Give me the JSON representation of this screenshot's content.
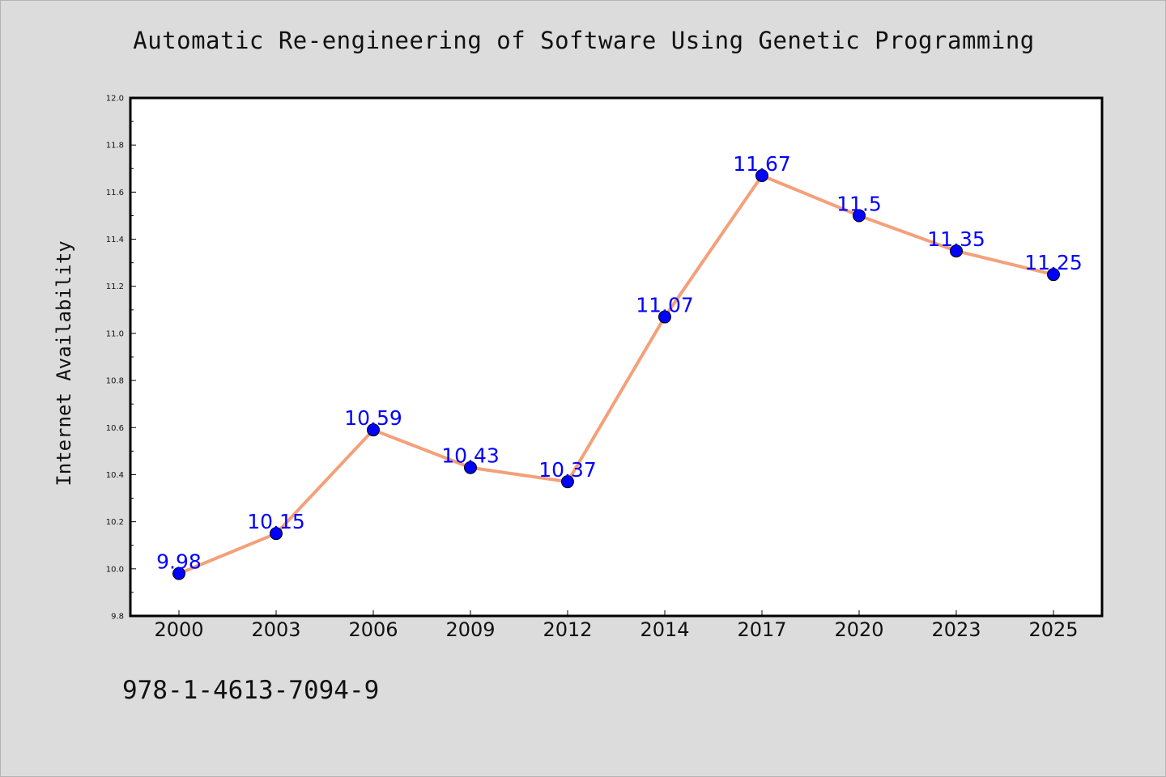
{
  "chart_data": {
    "type": "line",
    "title": "Automatic Re-engineering of Software Using Genetic Programming",
    "xlabel": "",
    "ylabel": "Internet Availability",
    "categories": [
      "2000",
      "2003",
      "2006",
      "2009",
      "2012",
      "2014",
      "2017",
      "2020",
      "2023",
      "2025"
    ],
    "series": [
      {
        "values": [
          9.98,
          10.15,
          10.59,
          10.43,
          10.37,
          11.07,
          11.67,
          11.5,
          11.35,
          11.25
        ],
        "data_labels": [
          "9.98",
          "10.15",
          "10.59",
          "10.43",
          "10.37",
          "11.07",
          "11.67",
          "11.5",
          "11.35",
          "11.25"
        ],
        "line_color": "#f4a07a",
        "marker_color": "#0000ff",
        "label_color": "#0000ff"
      }
    ],
    "ylim": [
      9.8,
      12.0
    ],
    "yticks": [
      9.8,
      10.0,
      10.2,
      10.4,
      10.6,
      10.8,
      11.0,
      11.2,
      11.4,
      11.6,
      11.8,
      12.0
    ],
    "ytick_labels": [
      "9.8",
      "10.0",
      "10.2",
      "10.4",
      "10.6",
      "10.8",
      "11.0",
      "11.2",
      "11.4",
      "11.6",
      "11.8",
      "12.0"
    ],
    "grid": false,
    "legend": "none",
    "footnote": "978-1-4613-7094-9",
    "colors": {
      "figure_background": "#dcdcdc",
      "plot_background": "#ffffff",
      "frame": "#000000"
    }
  }
}
